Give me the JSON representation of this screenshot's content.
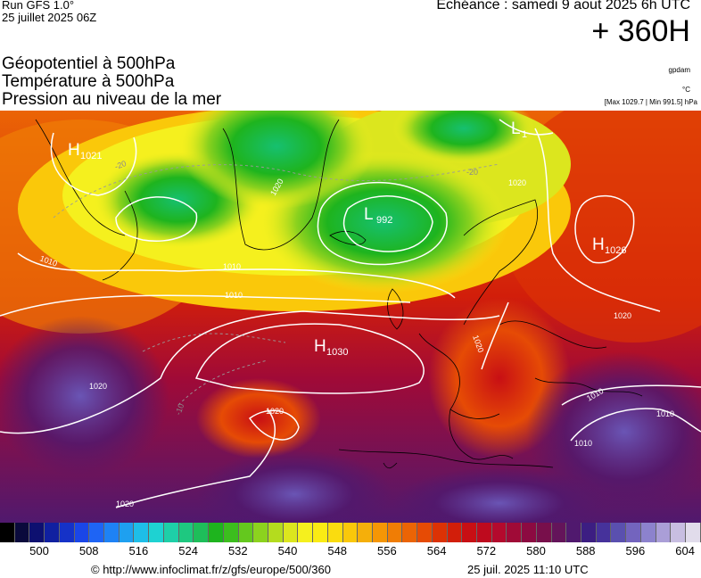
{
  "header": {
    "run": "Run GFS 1.0°",
    "run_date": "25 juillet 2025 06Z",
    "echeance": "Echéance : samedi 9 aout 2025 6h UTC",
    "lead": "+ 360H",
    "layers": [
      "Géopotentiel à 500hPa",
      "Température à 500hPa",
      "Pression au niveau de la mer"
    ],
    "unit_geopotential": "gpdam",
    "unit_temperature": "°C",
    "pressure_extremes": "[Max 1029.7 | Min 991.5] hPa"
  },
  "map": {
    "pressure_centers": [
      {
        "type": "H",
        "value": "1021"
      },
      {
        "type": "L",
        "value": "992"
      },
      {
        "type": "H",
        "value": "1026"
      },
      {
        "type": "H",
        "value": "1030"
      },
      {
        "type": "L",
        "value": "1"
      }
    ],
    "isobar_labels": [
      "1020",
      "1010",
      "1020",
      "1010",
      "1020",
      "1020",
      "1020",
      "1020",
      "1020",
      "1010",
      "1010",
      "1010",
      "1010",
      "1020"
    ],
    "temperature_labels": [
      "-20",
      "-20",
      "-10"
    ]
  },
  "legend": {
    "colors": [
      "#000000",
      "#0a0a3c",
      "#0d1070",
      "#1020a0",
      "#1532c8",
      "#1a46e8",
      "#1e64f5",
      "#1e82f5",
      "#1ea0f0",
      "#1ebee8",
      "#1ed2d2",
      "#1ecfa8",
      "#1ec880",
      "#1ebe5a",
      "#1eb41e",
      "#3cbe1e",
      "#64c81e",
      "#8cd21e",
      "#b4dc1e",
      "#dce61e",
      "#f5f01e",
      "#faeb14",
      "#fadc0f",
      "#fac80a",
      "#f5af0a",
      "#f59605",
      "#f07d05",
      "#eb6405",
      "#e64b05",
      "#dc3205",
      "#d21e0a",
      "#c80f14",
      "#be0a1e",
      "#b40a2d",
      "#a00a37",
      "#8c0a41",
      "#780f4b",
      "#64145a",
      "#50196e",
      "#3c1e82",
      "#46329b",
      "#5a50af",
      "#7364be",
      "#8c82cd",
      "#aa9ed7",
      "#c8bee1",
      "#e1dceb"
    ],
    "ticks": [
      "500",
      "508",
      "516",
      "524",
      "532",
      "540",
      "548",
      "556",
      "564",
      "572",
      "580",
      "588",
      "596",
      "604"
    ]
  },
  "footer": {
    "credit": "© http://www.infoclimat.fr/z/gfs/europe/500/360",
    "generated": "25 juil. 2025 11:10 UTC"
  }
}
